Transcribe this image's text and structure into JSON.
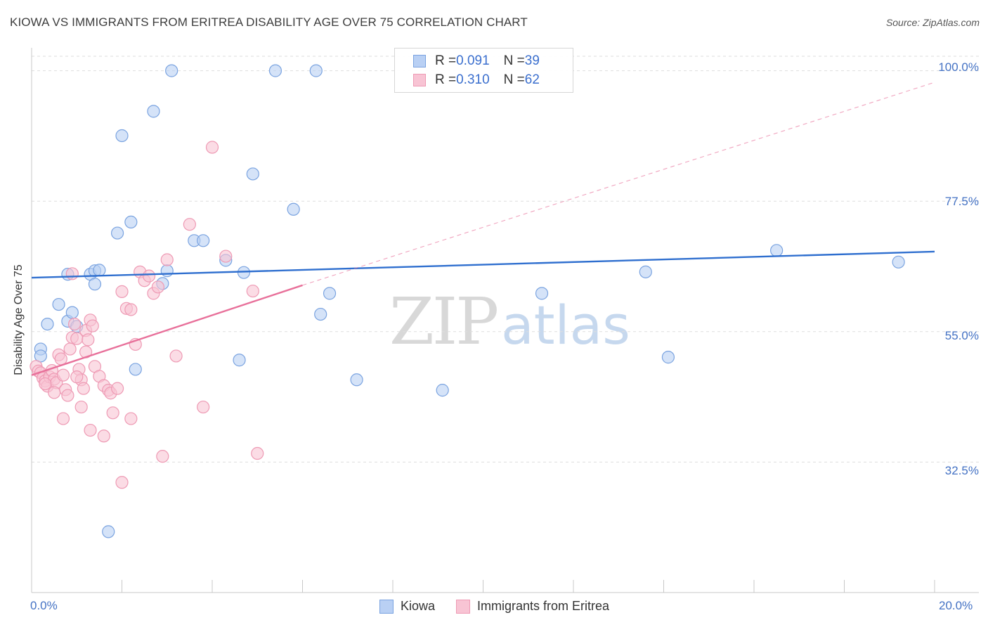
{
  "header": {
    "title": "KIOWA VS IMMIGRANTS FROM ERITREA DISABILITY AGE OVER 75 CORRELATION CHART",
    "source": "Source: ZipAtlas.com"
  },
  "watermark": {
    "zip": "ZIP",
    "atlas": "atlas"
  },
  "legend_top": {
    "rows": [
      {
        "r_label": "R = ",
        "r_value": "0.091",
        "n_label": "N = ",
        "n_value": "39"
      },
      {
        "r_label": "R = ",
        "r_value": "0.310",
        "n_label": "N = ",
        "n_value": "62"
      }
    ]
  },
  "legend_bottom": {
    "series1": "Kiowa",
    "series2": "Immigrants from Eritrea"
  },
  "colors": {
    "kiowa_fill": "#b9d0f4",
    "kiowa_stroke": "#7aa3e0",
    "kiowa_line": "#2f6fcf",
    "eritrea_fill": "#f8c4d4",
    "eritrea_stroke": "#ee9ab4",
    "eritrea_line": "#e8709a",
    "tick_label": "#4472c4",
    "grid": "#dddddd"
  },
  "axis_labels": {
    "ylabel": "Disability Age Over 75",
    "y_ticks": [
      "100.0%",
      "77.5%",
      "55.0%",
      "32.5%"
    ],
    "x_ticks": [
      "0.0%",
      "20.0%"
    ]
  },
  "chart_data": {
    "type": "scatter",
    "title": "KIOWA VS IMMIGRANTS FROM ERITREA DISABILITY AGE OVER 75 CORRELATION CHART",
    "xlabel": "",
    "ylabel": "Disability Age Over 75",
    "xlim": [
      0,
      20
    ],
    "ylim": [
      10,
      102.5
    ],
    "y_ticks": [
      32.5,
      55.0,
      77.5,
      100.0
    ],
    "x_ticks": [
      0,
      20
    ],
    "grid": true,
    "legend_placement": "top-center",
    "series": [
      {
        "name": "Kiowa",
        "r": 0.091,
        "n": 39,
        "trend": {
          "x": [
            0,
            20
          ],
          "y": [
            64.3,
            68.8
          ],
          "dashed_extension": false
        },
        "points": [
          [
            0.2,
            52.0
          ],
          [
            0.2,
            50.8
          ],
          [
            0.35,
            56.3
          ],
          [
            0.6,
            59.7
          ],
          [
            0.8,
            56.8
          ],
          [
            0.9,
            58.3
          ],
          [
            1.0,
            55.9
          ],
          [
            0.8,
            64.9
          ],
          [
            1.3,
            64.9
          ],
          [
            1.4,
            65.5
          ],
          [
            1.5,
            65.6
          ],
          [
            1.4,
            63.2
          ],
          [
            1.9,
            72.0
          ],
          [
            2.2,
            73.9
          ],
          [
            2.0,
            88.8
          ],
          [
            2.7,
            93.0
          ],
          [
            3.1,
            100.0
          ],
          [
            3.6,
            70.7
          ],
          [
            3.8,
            70.7
          ],
          [
            2.3,
            48.5
          ],
          [
            2.9,
            63.3
          ],
          [
            4.3,
            67.3
          ],
          [
            4.7,
            65.2
          ],
          [
            4.9,
            82.2
          ],
          [
            4.6,
            50.1
          ],
          [
            5.4,
            100.0
          ],
          [
            5.8,
            76.1
          ],
          [
            6.3,
            100.0
          ],
          [
            6.4,
            58.0
          ],
          [
            6.6,
            61.6
          ],
          [
            7.2,
            46.7
          ],
          [
            9.1,
            44.9
          ],
          [
            11.3,
            61.6
          ],
          [
            13.6,
            65.3
          ],
          [
            14.1,
            50.6
          ],
          [
            16.5,
            69.0
          ],
          [
            19.2,
            67.0
          ],
          [
            1.7,
            20.5
          ],
          [
            3.0,
            65.5
          ]
        ]
      },
      {
        "name": "Immigrants from Eritrea",
        "r": 0.31,
        "n": 62,
        "trend": {
          "x": [
            0,
            6.0
          ],
          "y": [
            47.5,
            63.0
          ],
          "dashed_extension": true,
          "dash_to": [
            20,
            98.0
          ]
        },
        "points": [
          [
            0.1,
            49.0
          ],
          [
            0.15,
            48.2
          ],
          [
            0.2,
            47.9
          ],
          [
            0.25,
            47.0
          ],
          [
            0.3,
            46.5
          ],
          [
            0.35,
            45.6
          ],
          [
            0.4,
            47.2
          ],
          [
            0.45,
            48.3
          ],
          [
            0.5,
            46.8
          ],
          [
            0.55,
            46.2
          ],
          [
            0.6,
            51.0
          ],
          [
            0.65,
            50.3
          ],
          [
            0.7,
            47.5
          ],
          [
            0.75,
            45.0
          ],
          [
            0.8,
            44.0
          ],
          [
            0.85,
            52.0
          ],
          [
            0.9,
            54.0
          ],
          [
            0.95,
            56.3
          ],
          [
            1.0,
            53.8
          ],
          [
            1.05,
            48.5
          ],
          [
            1.1,
            46.7
          ],
          [
            1.15,
            45.2
          ],
          [
            1.2,
            55.2
          ],
          [
            1.25,
            53.6
          ],
          [
            1.3,
            57.0
          ],
          [
            1.35,
            56.0
          ],
          [
            1.4,
            49.0
          ],
          [
            1.5,
            47.3
          ],
          [
            1.6,
            45.7
          ],
          [
            1.7,
            44.9
          ],
          [
            1.75,
            44.4
          ],
          [
            1.8,
            41.0
          ],
          [
            1.9,
            45.2
          ],
          [
            2.0,
            61.9
          ],
          [
            2.1,
            59.0
          ],
          [
            2.2,
            58.8
          ],
          [
            2.3,
            52.8
          ],
          [
            2.4,
            65.3
          ],
          [
            2.5,
            63.8
          ],
          [
            2.6,
            64.6
          ],
          [
            2.7,
            61.6
          ],
          [
            2.8,
            62.7
          ],
          [
            3.0,
            67.4
          ],
          [
            3.2,
            50.8
          ],
          [
            3.5,
            73.5
          ],
          [
            3.8,
            42.0
          ],
          [
            4.3,
            68.0
          ],
          [
            4.9,
            62.0
          ],
          [
            5.0,
            34.0
          ],
          [
            1.6,
            37.0
          ],
          [
            2.2,
            40.0
          ],
          [
            2.0,
            29.0
          ],
          [
            0.7,
            40.0
          ],
          [
            1.1,
            42.0
          ],
          [
            2.9,
            33.5
          ],
          [
            4.0,
            86.8
          ],
          [
            1.3,
            38.0
          ],
          [
            0.5,
            44.5
          ],
          [
            0.3,
            46.0
          ],
          [
            1.0,
            47.2
          ],
          [
            0.9,
            65.0
          ],
          [
            1.2,
            51.5
          ]
        ]
      }
    ]
  }
}
